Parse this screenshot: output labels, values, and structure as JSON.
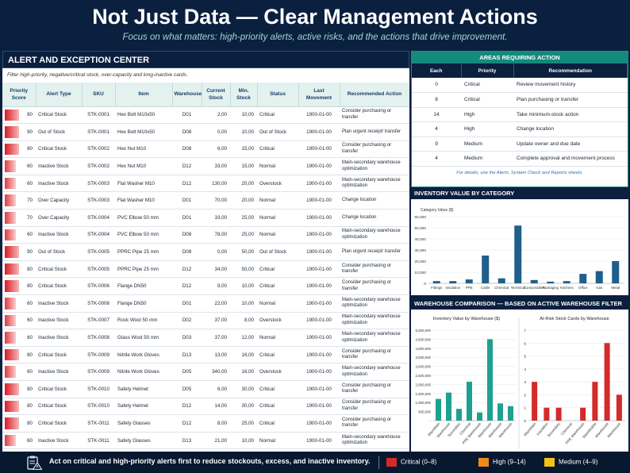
{
  "header": {
    "title": "Not Just Data — Clear Management Actions",
    "subtitle": "Focus on what matters: high-priority alerts, active risks, and the actions that drive improvement."
  },
  "alert_center": {
    "title": "ALERT AND EXCEPTION CENTER",
    "subtitle": "Filter high-priority, negative/critical stock, over-capacity and long-inactive cards.",
    "columns": [
      "Priority Score",
      "Alert Type",
      "SKU",
      "Item",
      "Warehouse",
      "Current Stock",
      "Min. Stock",
      "Status",
      "Last Movement",
      "Recommended Action"
    ],
    "rows": [
      {
        "score": "80",
        "type": "Critical Stock",
        "sku": "STK-0001",
        "item": "Hex Bolt M10x50",
        "wh": "D01",
        "cur": "2,00",
        "min": "10,00",
        "status": "Critical",
        "last": "1900-01-00",
        "action": "Consider purchasing or transfer"
      },
      {
        "score": "90",
        "type": "Out of Stock",
        "sku": "STK-0001",
        "item": "Hex Bolt M10x50",
        "wh": "D08",
        "cur": "0,00",
        "min": "10,00",
        "status": "Out of Stock",
        "last": "1900-01-00",
        "action": "Plan urgent receipt/ transfer"
      },
      {
        "score": "80",
        "type": "Critical Stock",
        "sku": "STK-0002",
        "item": "Hex Nut M10",
        "wh": "D08",
        "cur": "6,00",
        "min": "15,00",
        "status": "Critical",
        "last": "1900-01-00",
        "action": "Consider purchasing or transfer"
      },
      {
        "score": "60",
        "type": "Inactive Stock",
        "sku": "STK-0002",
        "item": "Hex Nut M10",
        "wh": "D12",
        "cur": "33,00",
        "min": "15,00",
        "status": "Normal",
        "last": "1900-01-00",
        "action": "Main-secondary warehouse optimization"
      },
      {
        "score": "60",
        "type": "Inactive Stock",
        "sku": "STK-0003",
        "item": "Flat Washer M10",
        "wh": "D12",
        "cur": "130,00",
        "min": "20,00",
        "status": "Overstock",
        "last": "1900-01-00",
        "action": "Main-secondary warehouse optimization"
      },
      {
        "score": "70",
        "type": "Over Capacity",
        "sku": "STK-0003",
        "item": "Flat Washer M10",
        "wh": "D01",
        "cur": "70,00",
        "min": "20,00",
        "status": "Normal",
        "last": "1900-01-00",
        "action": "Change location"
      },
      {
        "score": "70",
        "type": "Over Capacity",
        "sku": "STK-0004",
        "item": "PVC Elbow 50 mm",
        "wh": "D01",
        "cur": "33,00",
        "min": "25,00",
        "status": "Normal",
        "last": "1900-01-00",
        "action": "Change location"
      },
      {
        "score": "60",
        "type": "Inactive Stock",
        "sku": "STK-0004",
        "item": "PVC Elbow 50 mm",
        "wh": "D08",
        "cur": "78,00",
        "min": "25,00",
        "status": "Normal",
        "last": "1900-01-00",
        "action": "Main-secondary warehouse optimization"
      },
      {
        "score": "90",
        "type": "Out of Stock",
        "sku": "STK-0005",
        "item": "PPRC Pipe 25 mm",
        "wh": "D08",
        "cur": "0,00",
        "min": "50,00",
        "status": "Out of Stock",
        "last": "1900-01-00",
        "action": "Plan urgent receipt/ transfer"
      },
      {
        "score": "80",
        "type": "Critical Stock",
        "sku": "STK-0005",
        "item": "PPRC Pipe 25 mm",
        "wh": "D12",
        "cur": "34,00",
        "min": "50,00",
        "status": "Critical",
        "last": "1900-01-00",
        "action": "Consider purchasing or transfer"
      },
      {
        "score": "80",
        "type": "Critical Stock",
        "sku": "STK-0006",
        "item": "Flange DN50",
        "wh": "D12",
        "cur": "9,00",
        "min": "10,00",
        "status": "Critical",
        "last": "1900-01-00",
        "action": "Consider purchasing or transfer"
      },
      {
        "score": "60",
        "type": "Inactive Stock",
        "sku": "STK-0006",
        "item": "Flange DN50",
        "wh": "D01",
        "cur": "22,00",
        "min": "10,00",
        "status": "Normal",
        "last": "1900-01-00",
        "action": "Main-secondary warehouse optimization"
      },
      {
        "score": "60",
        "type": "Inactive Stock",
        "sku": "STK-0007",
        "item": "Rock Wool 50 mm",
        "wh": "D02",
        "cur": "37,00",
        "min": "8,00",
        "status": "Overstock",
        "last": "1900-01-00",
        "action": "Main-secondary warehouse optimization"
      },
      {
        "score": "60",
        "type": "Inactive Stock",
        "sku": "STK-0008",
        "item": "Glass Wool 50 mm",
        "wh": "D03",
        "cur": "37,00",
        "min": "12,00",
        "status": "Normal",
        "last": "1900-01-00",
        "action": "Main-secondary warehouse optimization"
      },
      {
        "score": "80",
        "type": "Critical Stock",
        "sku": "STK-0009",
        "item": "Nitrile Work Gloves",
        "wh": "D13",
        "cur": "13,00",
        "min": "16,00",
        "status": "Critical",
        "last": "1900-01-00",
        "action": "Consider purchasing or transfer"
      },
      {
        "score": "60",
        "type": "Inactive Stock",
        "sku": "STK-0009",
        "item": "Nitrile Work Gloves",
        "wh": "D05",
        "cur": "340,00",
        "min": "16,00",
        "status": "Overstock",
        "last": "1900-01-00",
        "action": "Main-secondary warehouse optimization"
      },
      {
        "score": "80",
        "type": "Critical Stock",
        "sku": "STK-0010",
        "item": "Safety Helmet",
        "wh": "D05",
        "cur": "6,00",
        "min": "30,00",
        "status": "Critical",
        "last": "1900-01-00",
        "action": "Consider purchasing or transfer"
      },
      {
        "score": "80",
        "type": "Critical Stock",
        "sku": "STK-0010",
        "item": "Safety Helmet",
        "wh": "D12",
        "cur": "14,00",
        "min": "30,00",
        "status": "Critical",
        "last": "1900-01-00",
        "action": "Consider purchasing or transfer"
      },
      {
        "score": "80",
        "type": "Critical Stock",
        "sku": "STK-0011",
        "item": "Safety Glasses",
        "wh": "D12",
        "cur": "8,00",
        "min": "25,00",
        "status": "Critical",
        "last": "1900-01-00",
        "action": "Consider purchasing or transfer"
      },
      {
        "score": "60",
        "type": "Inactive Stock",
        "sku": "STK-0011",
        "item": "Safety Glasses",
        "wh": "D13",
        "cur": "21,00",
        "min": "10,00",
        "status": "Normal",
        "last": "1900-01-00",
        "action": "Main-secondary warehouse optimization"
      }
    ]
  },
  "areas": {
    "title": "AREAS REQUIRING ACTION",
    "columns": [
      "Each",
      "Priority",
      "Recommendation"
    ],
    "rows": [
      {
        "each": "0",
        "priority": "Critical",
        "rec": "Review movement history"
      },
      {
        "each": "8",
        "priority": "Critical",
        "rec": "Plan purchasing or transfer"
      },
      {
        "each": "14",
        "priority": "High",
        "rec": "Take minimum-stock action"
      },
      {
        "each": "4",
        "priority": "High",
        "rec": "Change location"
      },
      {
        "each": "9",
        "priority": "Medium",
        "rec": "Update owner and due date"
      },
      {
        "each": "4",
        "priority": "Medium",
        "rec": "Complete approval and movement process"
      }
    ],
    "note": "For details, use the Alerts, System Check and Reports sheets."
  },
  "inventory_chart": {
    "section_title": "INVENTORY VALUE BY CATEGORY",
    "chart_data": {
      "type": "bar",
      "ylabel": "Category Value ($)",
      "ylim": [
        0,
        60000
      ],
      "yticks": [
        "0",
        "10,000",
        "20,000",
        "30,000",
        "40,000",
        "50,000",
        "60,000"
      ],
      "categories": [
        "Fittings",
        "Insulation",
        "PPE",
        "Cable",
        "Chemical",
        "Technical",
        "Consumables",
        "Packaging",
        "Kitchens",
        "Office",
        "Gas",
        "Metal"
      ],
      "values": [
        2000,
        2000,
        3500,
        25000,
        4500,
        52000,
        3000,
        1500,
        2000,
        8500,
        11000,
        20000
      ],
      "color": "#1f5f8a"
    }
  },
  "warehouse_section": {
    "title": "WAREHOUSE COMPARISON — BASED ON ACTIVE WAREHOUSE FILTER",
    "value_chart": {
      "title": "Inventory Value by Warehouse ($)",
      "chart_data": {
        "type": "bar",
        "ylim": [
          0,
          5000000
        ],
        "yticks": [
          "-",
          "500,000",
          "1,000,000",
          "1,500,000",
          "2,000,000",
          "2,500,000",
          "3,000,000",
          "3,500,000",
          "4,000,000",
          "4,500,000",
          "5,000,000"
        ],
        "categories": [
          "WareMain",
          "Warehouse",
          "Secondary",
          "Chemical",
          "PPE Warehouse",
          "Warehouse",
          "Warehouse",
          "Warehouse"
        ],
        "values": [
          1200000,
          1550000,
          650000,
          2150000,
          450000,
          4500000,
          950000,
          800000
        ],
        "color": "#1ea190"
      }
    },
    "risk_chart": {
      "title": "At-Risk Stock Cards by Warehouse",
      "chart_data": {
        "type": "bar",
        "ylim": [
          0,
          7
        ],
        "yticks": [
          "0",
          "1",
          "2",
          "3",
          "4",
          "5",
          "6",
          "7"
        ],
        "categories": [
          "WareMain",
          "Insulation",
          "Secondary",
          "Chemical",
          "PPE Warehouse",
          "WareMobile",
          "Warehouse",
          "Warehouse"
        ],
        "values": [
          3,
          1,
          1,
          0,
          1,
          3,
          6,
          2
        ],
        "color": "#d42a2a"
      }
    }
  },
  "footer": {
    "message": "Act on critical and high-priority alerts first to reduce stockouts, excess, and inactive inventory.",
    "legend": [
      {
        "label": "Critical (0–8)",
        "color": "#d42a2a"
      },
      {
        "label": "High (9–14)",
        "color": "#f08a1c"
      },
      {
        "label": "Medium (4–9)",
        "color": "#f2c21b"
      }
    ]
  }
}
